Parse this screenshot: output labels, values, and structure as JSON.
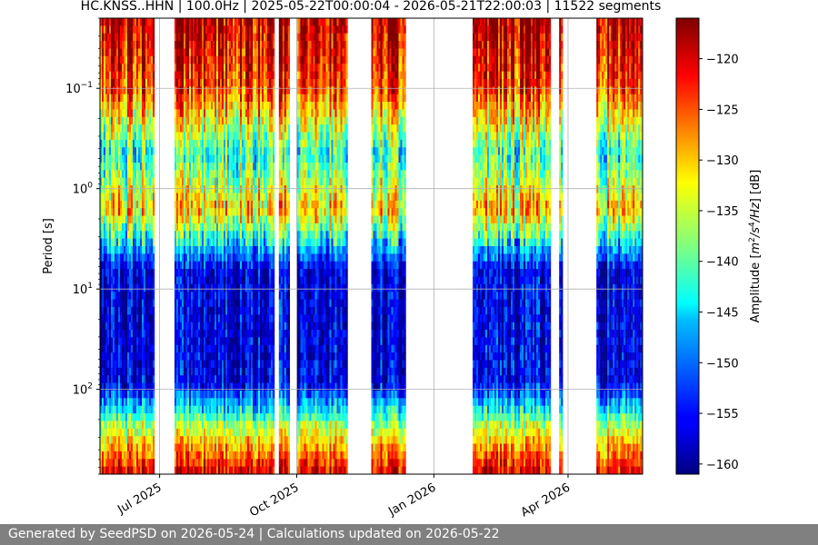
{
  "chart_data": {
    "type": "heatmap",
    "title": "HC.KNSS..HHN | 100.0Hz | 2025-05-22T00:00:04 - 2026-05-21T22:00:03 | 11522 segments",
    "ylabel": "Period [s]",
    "y_scale": "log",
    "y_inverted": true,
    "ylim": [
      0.02,
      700
    ],
    "y_ticks": [
      {
        "base": "10",
        "exp": "−1",
        "value": 0.1
      },
      {
        "base": "10",
        "exp": "0",
        "value": 1
      },
      {
        "base": "10",
        "exp": "1",
        "value": 10
      },
      {
        "base": "10",
        "exp": "2",
        "value": 100
      }
    ],
    "x_ticks": [
      "Jul 2025",
      "Oct 2025",
      "Jan 2026",
      "Apr 2026"
    ],
    "grid": true,
    "colorbar": {
      "label": "Amplitude [m²/s⁴/Hz] [dB]",
      "label_parts": [
        "Amplitude [",
        "m",
        "2",
        "/s",
        "4",
        "/Hz",
        "] [dB]"
      ],
      "ticks": [
        "−120",
        "−125",
        "−130",
        "−135",
        "−140",
        "−145",
        "−150",
        "−155",
        "−160"
      ],
      "tick_values": [
        -120,
        -125,
        -130,
        -135,
        -140,
        -145,
        -150,
        -155,
        -160
      ],
      "range": [
        -161,
        -116
      ],
      "colormap": "jet"
    },
    "data_segments": [
      {
        "start": "2025-05-22",
        "end": "2025-06-27"
      },
      {
        "start": "2025-07-11",
        "end": "2025-09-15"
      },
      {
        "start": "2025-09-19",
        "end": "2025-09-26"
      },
      {
        "start": "2025-10-01",
        "end": "2025-11-03"
      },
      {
        "start": "2025-11-20",
        "end": "2025-12-12"
      },
      {
        "start": "2026-01-27",
        "end": "2026-03-20"
      },
      {
        "start": "2026-03-26",
        "end": "2026-03-28"
      },
      {
        "start": "2026-04-20",
        "end": "2026-05-21"
      }
    ]
  },
  "footer": {
    "text": "Generated by SeedPSD on 2026-05-24 | Calculations updated on 2026-05-22"
  }
}
